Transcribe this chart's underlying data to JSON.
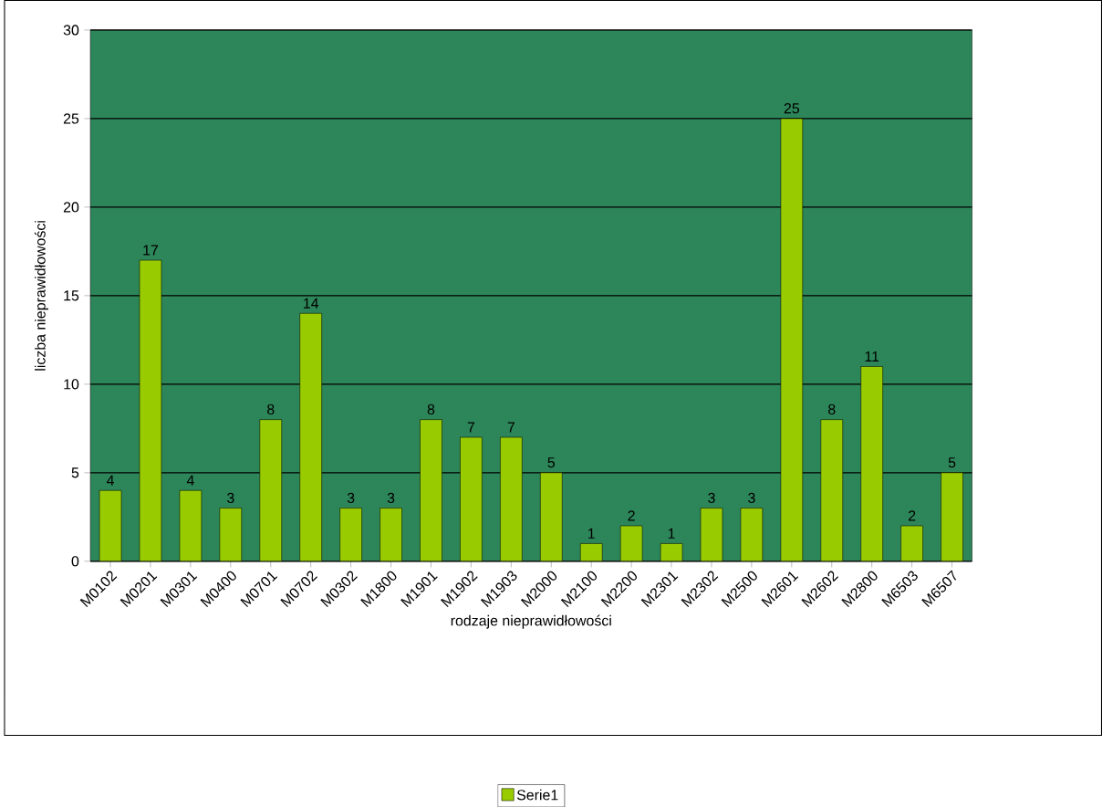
{
  "chart_data": {
    "type": "bar",
    "xlabel": "rodzaje nieprawidłowości",
    "ylabel": "liczba nieprawidłowości",
    "categories": [
      "M0102",
      "M0201",
      "M0301",
      "M0400",
      "M0701",
      "M0702",
      "M0302",
      "M1800",
      "M1901",
      "M1902",
      "M1903",
      "M2000",
      "M2100",
      "M2200",
      "M2301",
      "M2302",
      "M2500",
      "M2601",
      "M2602",
      "M2800",
      "M6503",
      "M6507"
    ],
    "series": [
      {
        "name": "Serie1",
        "color": "#99cc00",
        "values": [
          4,
          17,
          4,
          3,
          8,
          14,
          3,
          3,
          8,
          7,
          7,
          5,
          1,
          2,
          1,
          3,
          3,
          25,
          8,
          11,
          2,
          5
        ]
      }
    ],
    "ylim": [
      0,
      30
    ],
    "yticks": [
      0,
      5,
      10,
      15,
      20,
      25,
      30
    ],
    "grid": "y",
    "legend": "bottom",
    "data_labels": true
  }
}
